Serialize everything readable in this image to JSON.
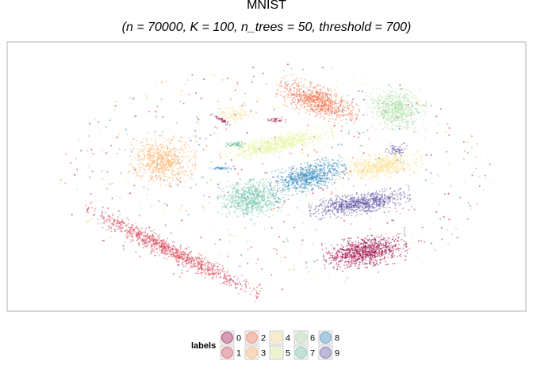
{
  "chart_data": {
    "type": "scatter",
    "title": "MNIST",
    "subtitle": "(n = 70000, K = 100, n_trees = 50, threshold = 700)",
    "xlabel": "",
    "ylabel": "",
    "axes_visible": false,
    "grid": false,
    "legend": {
      "title": "labels",
      "placement": "bottom",
      "columns": 5,
      "rows": 2
    },
    "point_opacity": 0.5,
    "series": [
      {
        "name": "0",
        "color": "#9E0142",
        "clusters": [
          {
            "cx": 0.69,
            "cy": 0.78,
            "rx": 0.07,
            "ry": 0.05,
            "rot": -8,
            "n": 900
          },
          {
            "cx": 0.415,
            "cy": 0.29,
            "rx": 0.02,
            "ry": 0.006,
            "rot": 25,
            "n": 40
          },
          {
            "cx": 0.52,
            "cy": 0.29,
            "rx": 0.015,
            "ry": 0.008,
            "rot": 0,
            "n": 30
          }
        ]
      },
      {
        "name": "1",
        "color": "#D53E4F",
        "clusters": [
          {
            "cx": 0.32,
            "cy": 0.78,
            "rx": 0.16,
            "ry": 0.03,
            "rot": 26,
            "n": 1000
          }
        ]
      },
      {
        "name": "2",
        "color": "#F46D43",
        "clusters": [
          {
            "cx": 0.6,
            "cy": 0.22,
            "rx": 0.07,
            "ry": 0.05,
            "rot": 20,
            "n": 800
          }
        ]
      },
      {
        "name": "3",
        "color": "#FDAE61",
        "clusters": [
          {
            "cx": 0.3,
            "cy": 0.44,
            "rx": 0.055,
            "ry": 0.08,
            "rot": 5,
            "n": 700
          }
        ]
      },
      {
        "name": "4",
        "color": "#FEE08B",
        "clusters": [
          {
            "cx": 0.72,
            "cy": 0.46,
            "rx": 0.07,
            "ry": 0.04,
            "rot": -5,
            "n": 650
          },
          {
            "cx": 0.44,
            "cy": 0.27,
            "rx": 0.03,
            "ry": 0.03,
            "rot": 0,
            "n": 120
          }
        ]
      },
      {
        "name": "5",
        "color": "#E6F598",
        "clusters": [
          {
            "cx": 0.52,
            "cy": 0.38,
            "rx": 0.095,
            "ry": 0.032,
            "rot": -12,
            "n": 800
          }
        ]
      },
      {
        "name": "6",
        "color": "#ABDDA4",
        "clusters": [
          {
            "cx": 0.75,
            "cy": 0.25,
            "rx": 0.05,
            "ry": 0.065,
            "rot": 0,
            "n": 700
          }
        ]
      },
      {
        "name": "7",
        "color": "#66C2A5",
        "clusters": [
          {
            "cx": 0.47,
            "cy": 0.58,
            "rx": 0.055,
            "ry": 0.06,
            "rot": 0,
            "n": 700
          },
          {
            "cx": 0.44,
            "cy": 0.38,
            "rx": 0.02,
            "ry": 0.01,
            "rot": 0,
            "n": 60
          }
        ]
      },
      {
        "name": "8",
        "color": "#3288BD",
        "clusters": [
          {
            "cx": 0.58,
            "cy": 0.5,
            "rx": 0.065,
            "ry": 0.045,
            "rot": -15,
            "n": 750
          },
          {
            "cx": 0.41,
            "cy": 0.47,
            "rx": 0.02,
            "ry": 0.005,
            "rot": 0,
            "n": 40
          }
        ]
      },
      {
        "name": "9",
        "color": "#5E4FA2",
        "clusters": [
          {
            "cx": 0.68,
            "cy": 0.6,
            "rx": 0.085,
            "ry": 0.035,
            "rot": -8,
            "n": 800
          },
          {
            "cx": 0.75,
            "cy": 0.4,
            "rx": 0.018,
            "ry": 0.02,
            "rot": 0,
            "n": 60
          }
        ]
      }
    ],
    "scatter_noise_points_per_label": 70
  }
}
